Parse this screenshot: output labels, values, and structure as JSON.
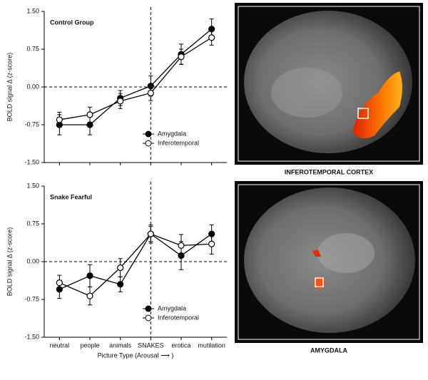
{
  "chart_data": [
    {
      "type": "line",
      "title": "Control Group",
      "y_label": "BOLD signal Δ (z-score)",
      "categories": [
        null,
        null,
        null,
        null,
        null,
        null
      ],
      "series": [
        {
          "name": "Amygdala",
          "color": "#000000",
          "marker": "filled",
          "values": [
            -0.75,
            -0.75,
            -0.22,
            0.02,
            0.65,
            1.15
          ],
          "errors": [
            0.2,
            0.2,
            0.15,
            0.2,
            0.2,
            0.2
          ]
        },
        {
          "name": "Inferotemporal",
          "color": "#000000",
          "marker": "open",
          "values": [
            -0.65,
            -0.55,
            -0.28,
            -0.12,
            0.6,
            0.98
          ],
          "errors": [
            0.15,
            0.15,
            0.15,
            0.15,
            0.15,
            0.15
          ]
        }
      ],
      "ylim": [
        -1.5,
        1.5
      ],
      "yticks": [
        {
          "value": -1.5,
          "label": "-1.50"
        },
        {
          "value": -0.75,
          "label": "-0.75"
        },
        {
          "value": 0,
          "label": "0.00"
        },
        {
          "value": 0.75,
          "label": "0.75"
        },
        {
          "value": 1.5,
          "label": "1.50"
        }
      ],
      "legend": "lower right"
    },
    {
      "type": "line",
      "title": "Snake Fearful",
      "y_label": "BOLD signal Δ (z-score)",
      "x_label": "Picture Type (Arousal ⟶ )",
      "categories": [
        "neutral",
        "people",
        "animals",
        "SNAKES",
        "erotica",
        "mutilation"
      ],
      "series": [
        {
          "name": "Amygdala",
          "color": "#000000",
          "marker": "filled",
          "values": [
            -0.55,
            -0.28,
            -0.45,
            0.55,
            0.12,
            0.55
          ],
          "errors": [
            0.18,
            0.22,
            0.15,
            0.18,
            0.28,
            0.18
          ]
        },
        {
          "name": "Inferotemporal",
          "color": "#000000",
          "marker": "open",
          "values": [
            -0.42,
            -0.68,
            -0.12,
            0.55,
            0.32,
            0.35
          ],
          "errors": [
            0.15,
            0.18,
            0.18,
            0.15,
            0.22,
            0.2
          ]
        }
      ],
      "ylim": [
        -1.5,
        1.5
      ],
      "yticks": [
        {
          "value": -1.5,
          "label": "-1.50"
        },
        {
          "value": -0.75,
          "label": "-0.75"
        },
        {
          "value": 0,
          "label": "0.00"
        },
        {
          "value": 0.75,
          "label": "0.75"
        },
        {
          "value": 1.5,
          "label": "1.50"
        }
      ],
      "legend": "lower right"
    }
  ],
  "images": [
    {
      "caption": "INFEROTEMPORAL CORTEX"
    },
    {
      "caption": "AMYGDALA"
    }
  ]
}
